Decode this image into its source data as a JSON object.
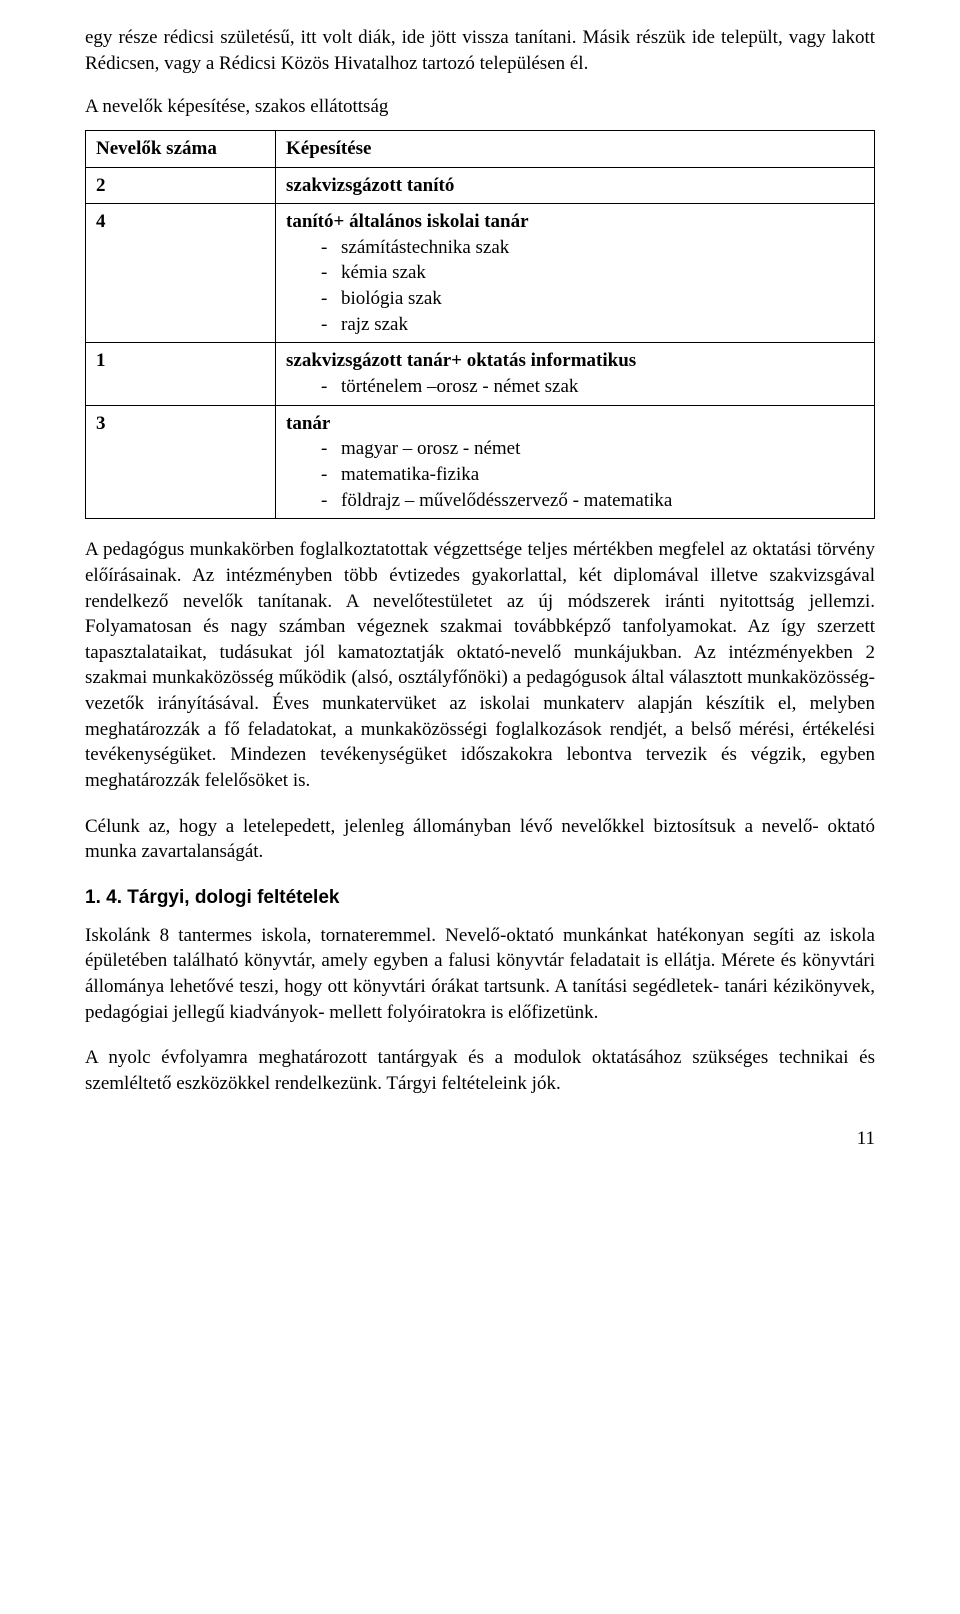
{
  "intro": "egy része rédicsi születésű, itt volt diák, ide jött vissza tanítani. Másik részük ide települt, vagy lakott Rédicsen, vagy a Rédicsi Közös Hivatalhoz tartozó településen él.",
  "section_title": "A nevelők képesítése, szakos ellátottság",
  "table": {
    "header": {
      "col1": "Nevelők száma",
      "col2": "Képesítése"
    },
    "rows": [
      {
        "count": "2",
        "title": "szakvizsgázott tanító",
        "items": []
      },
      {
        "count": "4",
        "title": "tanító+ általános iskolai tanár",
        "items": [
          "számítástechnika szak",
          "kémia szak",
          "biológia szak",
          "rajz szak"
        ]
      },
      {
        "count": "1",
        "title": "szakvizsgázott tanár+ oktatás informatikus",
        "items": [
          "történelem –orosz - német szak"
        ]
      },
      {
        "count": "3",
        "title": "tanár",
        "items": [
          "magyar – orosz - német",
          "matematika-fizika",
          "földrajz – művelődésszervező - matematika"
        ]
      }
    ]
  },
  "body_para": "A pedagógus munkakörben foglalkoztatottak végzettsége teljes mértékben megfelel az oktatási törvény előírásainak. Az intézményben több évtizedes gyakorlattal, két diplomával illetve szakvizsgával rendelkező nevelők tanítanak. A nevelőtestületet az új módszerek iránti nyitottság jellemzi. Folyamatosan és nagy számban végeznek szakmai továbbképző tanfolyamokat. Az így szerzett tapasztalataikat, tudásukat jól kamatoztatják oktató-nevelő munkájukban. Az intézményekben 2 szakmai munkaközösség működik (alsó, osztályfőnöki) a pedagógusok által választott munkaközösség-vezetők irányításával. Éves munkatervüket az iskolai munkaterv alapján készítik el, melyben meghatározzák a fő feladatokat, a munkaközösségi foglalkozások rendjét, a belső mérési, értékelési tevékenységüket. Mindezen tevékenységüket időszakokra lebontva tervezik és végzik, egyben meghatározzák felelősöket is.",
  "goal_para": "Célunk az, hogy a letelepedett, jelenleg állományban lévő nevelőkkel biztosítsuk a nevelő- oktató munka zavartalanságát.",
  "subheading": "1. 4. Tárgyi, dologi feltételek",
  "para3": "Iskolánk 8 tantermes iskola, tornateremmel. Nevelő-oktató munkánkat hatékonyan segíti az iskola épületében található könyvtár, amely egyben a falusi könyvtár feladatait is ellátja. Mérete és könyvtári állománya lehetővé teszi, hogy ott könyvtári órákat tartsunk. A tanítási segédletek- tanári kézikönyvek, pedagógiai jellegű kiadványok- mellett folyóiratokra is előfizetünk.",
  "para4": "A nyolc évfolyamra meghatározott tantárgyak és a modulok oktatásához szükséges technikai és szemléltető eszközökkel rendelkezünk. Tárgyi feltételeink jók.",
  "page_number": "11"
}
